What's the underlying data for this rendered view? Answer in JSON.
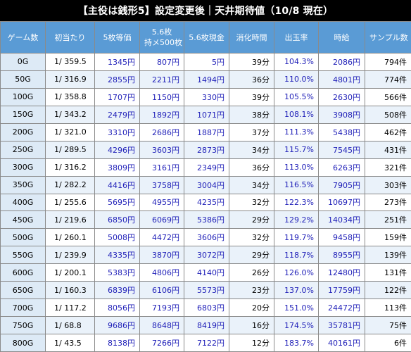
{
  "title": "【主役は銭形5】設定変更後｜天井期待値（10/8 現在）",
  "headers": [
    {
      "line1": "ゲーム数",
      "line2": ""
    },
    {
      "line1": "初当たり",
      "line2": ""
    },
    {
      "line1": "5枚等価",
      "line2": ""
    },
    {
      "line1": "5.6枚",
      "line2": "持メ500枚"
    },
    {
      "line1": "5.6枚現金",
      "line2": ""
    },
    {
      "line1": "消化時間",
      "line2": ""
    },
    {
      "line1": "出玉率",
      "line2": ""
    },
    {
      "line1": "時給",
      "line2": ""
    },
    {
      "line1": "サンプル数",
      "line2": ""
    }
  ],
  "rows": [
    [
      "0G",
      "1/ 359.5",
      "1345円",
      "807円",
      "5円",
      "39分",
      "104.3%",
      "2086円",
      "794件"
    ],
    [
      "50G",
      "1/ 316.9",
      "2855円",
      "2211円",
      "1494円",
      "36分",
      "110.0%",
      "4801円",
      "774件"
    ],
    [
      "100G",
      "1/ 358.8",
      "1707円",
      "1150円",
      "330円",
      "39分",
      "105.5%",
      "2630円",
      "566件"
    ],
    [
      "150G",
      "1/ 343.2",
      "2479円",
      "1892円",
      "1071円",
      "38分",
      "108.1%",
      "3908円",
      "508件"
    ],
    [
      "200G",
      "1/ 321.0",
      "3310円",
      "2686円",
      "1887円",
      "37分",
      "111.3%",
      "5438円",
      "462件"
    ],
    [
      "250G",
      "1/ 289.5",
      "4296円",
      "3603円",
      "2873円",
      "34分",
      "115.7%",
      "7545円",
      "431件"
    ],
    [
      "300G",
      "1/ 316.2",
      "3809円",
      "3161円",
      "2349円",
      "36分",
      "113.0%",
      "6263円",
      "321件"
    ],
    [
      "350G",
      "1/ 282.2",
      "4416円",
      "3758円",
      "3004円",
      "34分",
      "116.5%",
      "7905円",
      "303件"
    ],
    [
      "400G",
      "1/ 255.6",
      "5695円",
      "4955円",
      "4235円",
      "32分",
      "122.3%",
      "10697円",
      "273件"
    ],
    [
      "450G",
      "1/ 219.6",
      "6850円",
      "6069円",
      "5386円",
      "29分",
      "129.2%",
      "14034円",
      "251件"
    ],
    [
      "500G",
      "1/ 260.1",
      "5008円",
      "4472円",
      "3606円",
      "32分",
      "119.7%",
      "9458円",
      "159件"
    ],
    [
      "550G",
      "1/ 239.9",
      "4335円",
      "3870円",
      "3072円",
      "29分",
      "118.7%",
      "8955円",
      "139件"
    ],
    [
      "600G",
      "1/ 200.1",
      "5383円",
      "4806円",
      "4140円",
      "26分",
      "126.0%",
      "12480円",
      "131件"
    ],
    [
      "650G",
      "1/ 160.3",
      "6839円",
      "6106円",
      "5573円",
      "23分",
      "137.0%",
      "17759円",
      "122件"
    ],
    [
      "700G",
      "1/ 117.2",
      "8056円",
      "7193円",
      "6803円",
      "20分",
      "151.0%",
      "24472円",
      "113件"
    ],
    [
      "750G",
      "1/ 68.8",
      "9686円",
      "8648円",
      "8419円",
      "16分",
      "174.5%",
      "35781円",
      "75件"
    ],
    [
      "800G",
      "1/ 43.5",
      "8138円",
      "7266円",
      "7122円",
      "12分",
      "183.7%",
      "40161円",
      "6件"
    ]
  ]
}
